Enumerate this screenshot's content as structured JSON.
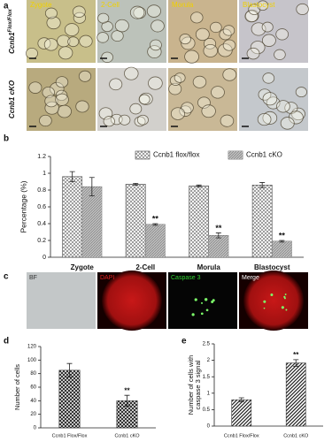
{
  "figure": {
    "panels": [
      "a",
      "b",
      "c",
      "d",
      "e"
    ],
    "a": {
      "columns": [
        "Zygote",
        "2-Cell",
        "Morula",
        "Blastocyst"
      ],
      "rows": [
        {
          "text": "Ccnb1",
          "sup": "Flox/Flox"
        },
        {
          "text": "Ccnb1 cKO"
        }
      ]
    },
    "c": {
      "labels": [
        "BF",
        "DAPI",
        "Caspase 3",
        "Merge"
      ]
    }
  },
  "chart_data": [
    {
      "type": "bar",
      "y_label": "Percentage (%)",
      "categories": [
        "Zygote",
        "2-Cell",
        "Morula",
        "Blastocyst"
      ],
      "series": [
        {
          "name": "Ccnb1 flox/flox",
          "color": "#ffffff",
          "hatch": "cross",
          "values": [
            0.96,
            0.87,
            0.85,
            0.86
          ],
          "errors": [
            0.06,
            0.01,
            0.01,
            0.03
          ]
        },
        {
          "name": "Ccnb1 cKO",
          "color": "#bdbdbd",
          "hatch": "diag",
          "values": [
            0.84,
            0.39,
            0.26,
            0.19
          ],
          "errors": [
            0.11,
            0.01,
            0.03,
            0.01
          ],
          "annotations": [
            null,
            "**",
            "**",
            "**"
          ]
        }
      ],
      "ylim": [
        0,
        1.2
      ],
      "yticks": [
        0,
        0.2,
        0.4,
        0.6,
        0.8,
        1,
        1.2
      ],
      "legend": "top-right"
    },
    {
      "type": "bar",
      "y_label": [
        "Number of cells"
      ],
      "categories": [
        "Ccnb1 Flox/Flox",
        "Ccnb1 cKO"
      ],
      "color": "#ffffff",
      "hatch": "grid",
      "values": [
        85,
        40
      ],
      "errors": [
        10,
        8
      ],
      "annotations": [
        null,
        "**"
      ],
      "ylim": [
        0,
        120
      ],
      "yticks": [
        0,
        20,
        40,
        60,
        80,
        100,
        120
      ]
    },
    {
      "type": "bar",
      "y_label": [
        "Number of cells  with",
        "caspase 3 signal"
      ],
      "categories": [
        "Ccnb1 Flox/Flox",
        "Ccnb1 cKO"
      ],
      "color": "#ffffff",
      "hatch": "stripe",
      "values": [
        0.8,
        1.92
      ],
      "errors": [
        0.06,
        0.1
      ],
      "annotations": [
        null,
        "**"
      ],
      "ylim": [
        0,
        2.5
      ],
      "yticks": [
        0,
        0.5,
        1,
        1.5,
        2,
        2.5
      ]
    }
  ]
}
